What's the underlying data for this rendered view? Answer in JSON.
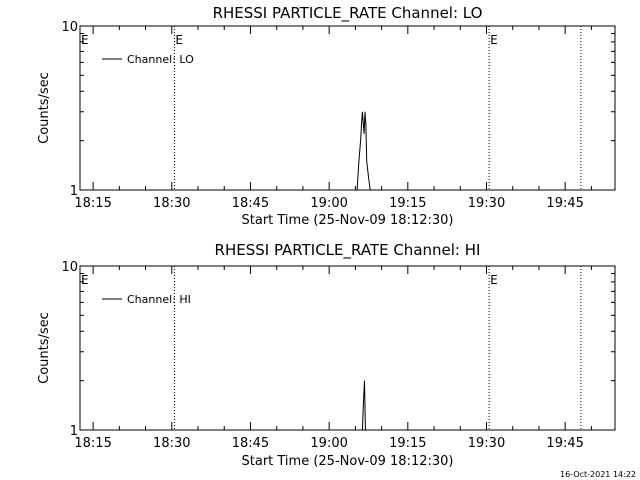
{
  "timestamp": "16-Oct-2021 14:22",
  "chart_data": [
    {
      "type": "line",
      "title": "RHESSI PARTICLE_RATE Channel: LO",
      "xlabel": "Start Time (25-Nov-09 18:12:30)",
      "ylabel": "Counts/sec",
      "yscale": "log",
      "ylim": [
        1,
        10
      ],
      "y_tick_labels": [
        "1",
        "10"
      ],
      "xlim": [
        "18:12:30",
        "19:54:30"
      ],
      "x_tick_labels": [
        "18:15",
        "18:30",
        "18:45",
        "19:00",
        "19:15",
        "19:30",
        "19:45"
      ],
      "legend": {
        "label": "Channel: LO",
        "position": "top-left"
      },
      "event_lines": [
        {
          "time": "18:30:30",
          "label": "E"
        },
        {
          "time": "19:30:30",
          "label": "E"
        },
        {
          "time": "19:48:00",
          "label": ""
        }
      ],
      "left_marker": "E",
      "series": [
        {
          "name": "Channel: LO",
          "x": [
            "19:05:20",
            "19:05:40",
            "19:06:00",
            "19:06:10",
            "19:06:20",
            "19:06:40",
            "19:06:50",
            "19:07:00",
            "19:07:10",
            "19:07:30",
            "19:07:50"
          ],
          "y": [
            1,
            1.5,
            2.0,
            2.5,
            3.0,
            2.2,
            3.0,
            2.5,
            1.5,
            1.2,
            1
          ]
        }
      ]
    },
    {
      "type": "line",
      "title": "RHESSI PARTICLE_RATE Channel: HI",
      "xlabel": "Start Time (25-Nov-09 18:12:30)",
      "ylabel": "Counts/sec",
      "yscale": "log",
      "ylim": [
        1,
        10
      ],
      "y_tick_labels": [
        "1",
        "10"
      ],
      "xlim": [
        "18:12:30",
        "19:54:30"
      ],
      "x_tick_labels": [
        "18:15",
        "18:30",
        "18:45",
        "19:00",
        "19:15",
        "19:30",
        "19:45"
      ],
      "legend": {
        "label": "Channel: HI",
        "position": "top-left"
      },
      "event_lines": [
        {
          "time": "18:30:30",
          "label": ""
        },
        {
          "time": "19:30:30",
          "label": "E"
        },
        {
          "time": "19:48:00",
          "label": ""
        }
      ],
      "left_marker": "E",
      "series": [
        {
          "name": "Channel: HI",
          "x": [
            "19:06:20",
            "19:06:35",
            "19:06:45",
            "19:06:55"
          ],
          "y": [
            1,
            1.6,
            2.0,
            1
          ]
        }
      ]
    }
  ]
}
